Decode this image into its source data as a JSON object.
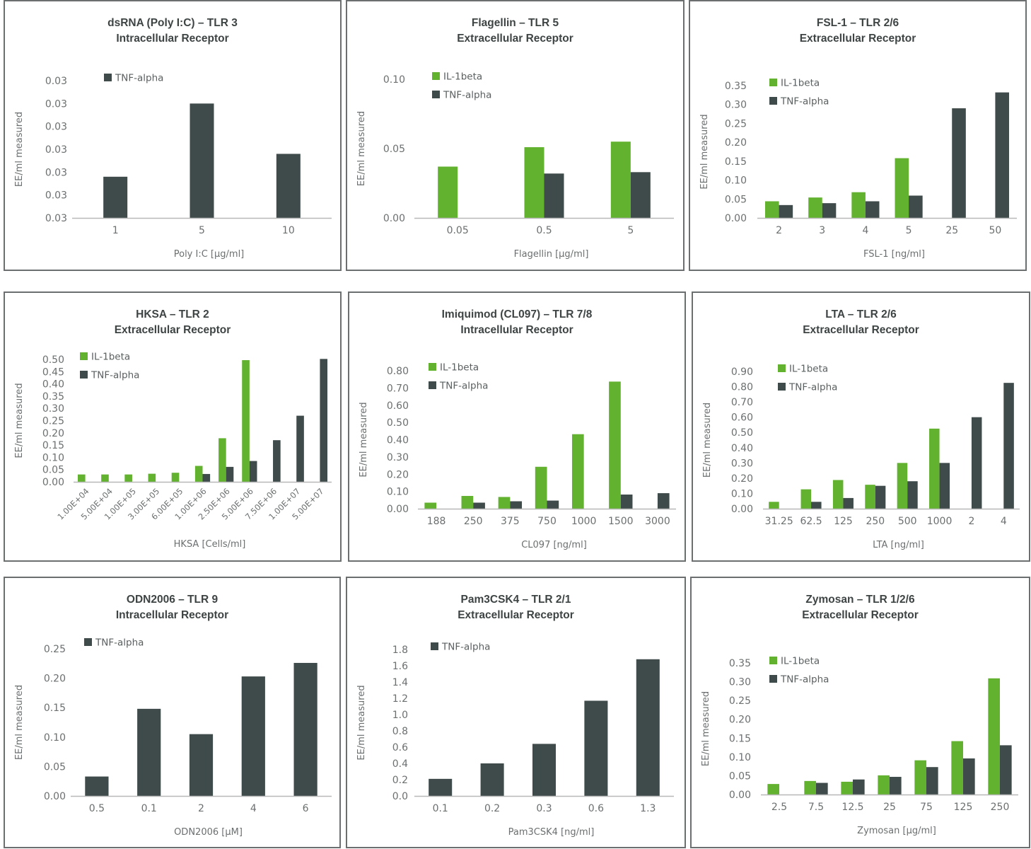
{
  "colors": {
    "il1beta": "#62b22f",
    "tnfalpha": "#3f4a4a",
    "axis": "#b8b8b8",
    "border": "#6b6f70"
  },
  "chart_data": [
    {
      "type": "bar",
      "title": "dsRNA (Poly I:C) – TLR 3",
      "subtitle": "Intracellular Receptor",
      "xlabel": "Poly I:C [µg/ml]",
      "ylabel": "EE/ml measured",
      "categories": [
        "1",
        "5",
        "10"
      ],
      "ylim": [
        0.0,
        6.0
      ],
      "yticks": [
        "0.03",
        "0.03",
        "0.03",
        "0.03",
        "0.03",
        "0.03",
        "0.03"
      ],
      "legend_position": "top-left",
      "series": [
        {
          "name": "TNF-alpha",
          "key": "tnfalpha",
          "values": [
            1.8,
            5.0,
            2.8
          ]
        }
      ]
    },
    {
      "type": "bar",
      "title": "Flagellin – TLR 5",
      "subtitle": "Extracellular Receptor",
      "xlabel": "Flagellin [µg/ml]",
      "ylabel": "EE/ml measured",
      "categories": [
        "0.05",
        "0.5",
        "5"
      ],
      "ylim": [
        0.0,
        0.1
      ],
      "yticks": [
        "0.00",
        "0.05",
        "0.10"
      ],
      "legend_position": "top-left",
      "series": [
        {
          "name": "IL-1beta",
          "key": "il1beta",
          "values": [
            0.037,
            0.051,
            0.055
          ]
        },
        {
          "name": "TNF-alpha",
          "key": "tnfalpha",
          "values": [
            null,
            0.032,
            0.033
          ]
        }
      ]
    },
    {
      "type": "bar",
      "title": "FSL-1 – TLR 2/6",
      "subtitle": "Extracellular Receptor",
      "xlabel": "FSL-1 [ng/ml]",
      "ylabel": "EE/ml measured",
      "categories": [
        "2",
        "3",
        "4",
        "5",
        "25",
        "50"
      ],
      "ylim": [
        0.0,
        0.35
      ],
      "yticks": [
        "0.00",
        "0.05",
        "0.10",
        "0.15",
        "0.20",
        "0.25",
        "0.30",
        "0.35"
      ],
      "legend_position": "top-left",
      "series": [
        {
          "name": "IL-1beta",
          "key": "il1beta",
          "values": [
            0.044,
            0.054,
            0.068,
            0.158,
            null,
            null
          ]
        },
        {
          "name": "TNF-alpha",
          "key": "tnfalpha",
          "values": [
            0.034,
            0.039,
            0.044,
            0.059,
            0.29,
            0.332
          ]
        }
      ]
    },
    {
      "type": "bar",
      "title": "HKSA – TLR 2",
      "subtitle": "Extracellular Receptor",
      "xlabel": "HKSA [Cells/ml]",
      "ylabel": "EE/ml measured",
      "categories": [
        "1.00E+04",
        "5.00E+04",
        "1.00E+05",
        "3.00E+05",
        "6.00E+05",
        "1.00E+06",
        "2.50E+06",
        "5.00E+06",
        "7.50E+06",
        "1.00E+07",
        "5.00E+07"
      ],
      "rotated_xticks": true,
      "ylim": [
        0.0,
        0.5
      ],
      "yticks": [
        "0.00",
        "0.05",
        "0.10",
        "0.15",
        "0.20",
        "0.25",
        "0.30",
        "0.35",
        "0.40",
        "0.45",
        "0.50"
      ],
      "legend_position": "top-left",
      "series": [
        {
          "name": "IL-1beta",
          "key": "il1beta",
          "values": [
            0.03,
            0.03,
            0.03,
            0.033,
            0.037,
            0.065,
            0.178,
            0.497,
            null,
            null,
            null
          ]
        },
        {
          "name": "TNF-alpha",
          "key": "tnfalpha",
          "values": [
            null,
            null,
            null,
            null,
            null,
            0.032,
            0.061,
            0.085,
            0.17,
            0.27,
            0.502
          ]
        }
      ]
    },
    {
      "type": "bar",
      "title": "Imiquimod (CL097) – TLR 7/8",
      "subtitle": "Intracellular Receptor",
      "xlabel": "CL097 [ng/ml]",
      "ylabel": "EE/ml measured",
      "categories": [
        "188",
        "250",
        "375",
        "750",
        "1000",
        "1500",
        "3000"
      ],
      "ylim": [
        0.0,
        0.8
      ],
      "yticks": [
        "0.00",
        "0.10",
        "0.20",
        "0.30",
        "0.40",
        "0.50",
        "0.60",
        "0.70",
        "0.80"
      ],
      "legend_position": "top-left",
      "series": [
        {
          "name": "IL-1beta",
          "key": "il1beta",
          "values": [
            0.035,
            0.074,
            0.068,
            0.243,
            0.432,
            0.737,
            null
          ]
        },
        {
          "name": "TNF-alpha",
          "key": "tnfalpha",
          "values": [
            null,
            0.035,
            0.043,
            0.047,
            null,
            0.082,
            0.09
          ]
        }
      ]
    },
    {
      "type": "bar",
      "title": "LTA – TLR 2/6",
      "subtitle": "Extracellular Receptor",
      "xlabel": "LTA [ng/ml]",
      "ylabel": "EE/ml measured",
      "categories": [
        "31.25",
        "62.5",
        "125",
        "250",
        "500",
        "1000",
        "2",
        "4"
      ],
      "ylim": [
        0.0,
        0.9
      ],
      "yticks": [
        "0.00",
        "0.10",
        "0.20",
        "0.30",
        "0.40",
        "0.50",
        "0.60",
        "0.70",
        "0.80",
        "0.90"
      ],
      "legend_position": "top-left",
      "series": [
        {
          "name": "IL-1beta",
          "key": "il1beta",
          "values": [
            0.045,
            0.127,
            0.188,
            0.157,
            0.3,
            0.525,
            null,
            null
          ]
        },
        {
          "name": "TNF-alpha",
          "key": "tnfalpha",
          "values": [
            null,
            0.045,
            0.07,
            0.15,
            0.18,
            0.3,
            0.6,
            0.825
          ]
        }
      ]
    },
    {
      "type": "bar",
      "title": "ODN2006 – TLR 9",
      "subtitle": "Intracellular Receptor",
      "xlabel": "ODN2006 [µM]",
      "ylabel": "EE/ml measured",
      "categories": [
        "0.5",
        "0.1",
        "2",
        "4",
        "6"
      ],
      "ylim": [
        0.0,
        0.25
      ],
      "yticks": [
        "0.00",
        "0.05",
        "0.10",
        "0.15",
        "0.20",
        "0.25"
      ],
      "legend_position": "top-left",
      "series": [
        {
          "name": "TNF-alpha",
          "key": "tnfalpha",
          "values": [
            0.033,
            0.148,
            0.105,
            0.203,
            0.226
          ]
        }
      ]
    },
    {
      "type": "bar",
      "title": "Pam3CSK4 – TLR 2/1",
      "subtitle": "Extracellular Receptor",
      "xlabel": "Pam3CSK4 [ng/ml]",
      "ylabel": "EE/ml measured",
      "categories": [
        "0.1",
        "0.2",
        "0.3",
        "0.6",
        "1.3"
      ],
      "ylim": [
        0.0,
        1.8
      ],
      "yticks": [
        "0.0",
        "0.2",
        "0.4",
        "0.6",
        "0.8",
        "1.0",
        "1.2",
        "1.4",
        "1.6",
        "1.8"
      ],
      "legend_position": "top-left",
      "series": [
        {
          "name": "TNF-alpha",
          "key": "tnfalpha",
          "values": [
            0.21,
            0.4,
            0.64,
            1.17,
            1.68
          ]
        }
      ]
    },
    {
      "type": "bar",
      "title": "Zymosan – TLR 1/2/6",
      "subtitle": "Extracellular Receptor",
      "xlabel": "Zymosan [µg/ml]",
      "ylabel": "EE/ml measured",
      "categories": [
        "2.5",
        "7.5",
        "12.5",
        "25",
        "75",
        "125",
        "250"
      ],
      "ylim": [
        0.0,
        0.35
      ],
      "yticks": [
        "0.00",
        "0.05",
        "0.10",
        "0.15",
        "0.20",
        "0.25",
        "0.30",
        "0.35"
      ],
      "legend_position": "top-left",
      "series": [
        {
          "name": "IL-1beta",
          "key": "il1beta",
          "values": [
            0.028,
            0.036,
            0.034,
            0.051,
            0.091,
            0.142,
            0.309
          ]
        },
        {
          "name": "TNF-alpha",
          "key": "tnfalpha",
          "values": [
            null,
            0.031,
            0.04,
            0.047,
            0.073,
            0.096,
            0.131
          ]
        }
      ]
    }
  ]
}
